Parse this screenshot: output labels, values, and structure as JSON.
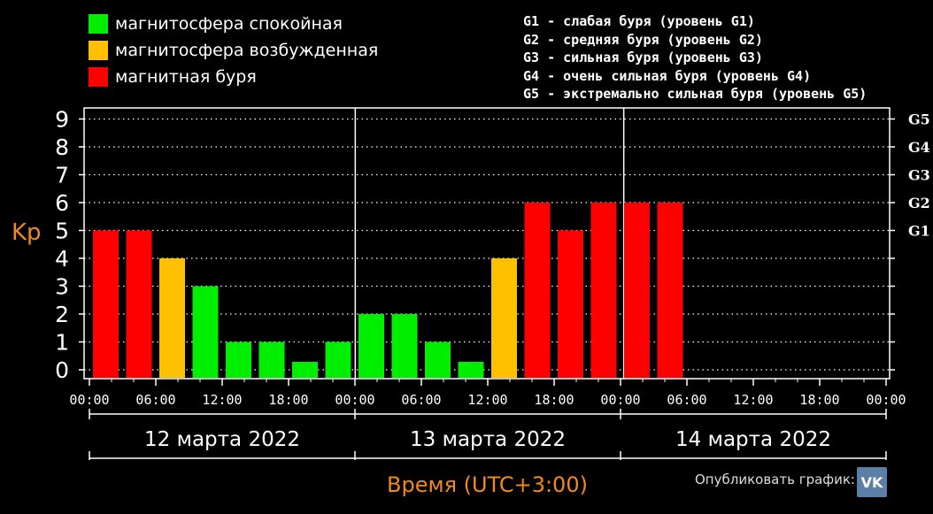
{
  "legend": [
    {
      "label": "магнитосфера спокойная",
      "color": "#00ee00"
    },
    {
      "label": "магнитосфера возбужденная",
      "color": "#ffc000"
    },
    {
      "label": "магнитная буря",
      "color": "#ff0000"
    }
  ],
  "glevel_descriptions": [
    "G1 - слабая буря (уровень G1)",
    "G2 - средняя буря (уровень G2)",
    "G3 - сильная буря (уровень G3)",
    "G4 - очень сильная буря (уровень G4)",
    "G5 - экстремально сильная буря (уровень G5)"
  ],
  "publish_label": "Опубликовать график:",
  "vk_icon": "vk-icon",
  "chart_data": {
    "type": "bar",
    "ylabel": "Kp",
    "xlabel": "Время (UTC+3:00)",
    "ylim": [
      0,
      9
    ],
    "yticks": [
      "0",
      "1",
      "2",
      "3",
      "4",
      "5",
      "6",
      "7",
      "8",
      "9"
    ],
    "g_levels": [
      {
        "label": "G1",
        "kp": 5
      },
      {
        "label": "G2",
        "kp": 6
      },
      {
        "label": "G3",
        "kp": 7
      },
      {
        "label": "G4",
        "kp": 8
      },
      {
        "label": "G5",
        "kp": 9
      }
    ],
    "time_ticks": [
      "00:00",
      "06:00",
      "12:00",
      "18:00",
      "00:00",
      "06:00",
      "12:00",
      "18:00",
      "00:00",
      "06:00",
      "12:00",
      "18:00",
      "00:00"
    ],
    "days": [
      "12 марта 2022",
      "13 марта 2022",
      "14 марта 2022"
    ],
    "series": [
      {
        "values": [
          5,
          5,
          4,
          3,
          1,
          1,
          0,
          1,
          2,
          2,
          1,
          0,
          4,
          6,
          5,
          6,
          6,
          6
        ]
      }
    ],
    "colors": {
      "quiet": "#00ee00",
      "active": "#ffc000",
      "storm": "#ff0000"
    },
    "grid": true
  }
}
